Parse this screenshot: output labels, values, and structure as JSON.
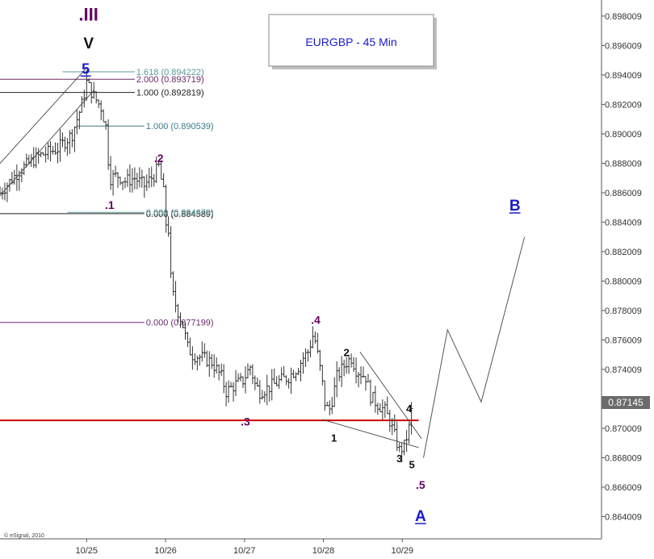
{
  "chart_data": {
    "type": "ohlc",
    "title": "EURGBP - 45 Min",
    "copyright": "© eSignal, 2010",
    "current_price": "0.87145",
    "y_ticks": [
      "0.898009",
      "0.896009",
      "0.894009",
      "0.892009",
      "0.890009",
      "0.888009",
      "0.886009",
      "0.884009",
      "0.882009",
      "0.880009",
      "0.878009",
      "0.876009",
      "0.874009",
      "0.872009",
      "0.870009",
      "0.868009",
      "0.866009",
      "0.864009"
    ],
    "x_ticks": [
      {
        "label": "10/25",
        "x": 0.3
      },
      {
        "label": "10/26",
        "x": 1.12
      },
      {
        "label": "10/27",
        "x": 1.94
      },
      {
        "label": "10/28",
        "x": 2.76
      },
      {
        "label": "10/29",
        "x": 3.58
      }
    ],
    "x_range": [
      -0.6,
      5.65
    ],
    "y_range": [
      0.8625,
      0.8991
    ],
    "support_level": 0.87055,
    "price_path": [
      [
        -0.6,
        0.886
      ],
      [
        -0.4,
        0.8875
      ],
      [
        -0.2,
        0.8885
      ],
      [
        0.0,
        0.889
      ],
      [
        0.15,
        0.89
      ],
      [
        0.25,
        0.892
      ],
      [
        0.3,
        0.8935
      ],
      [
        0.38,
        0.8925
      ],
      [
        0.45,
        0.8918
      ],
      [
        0.5,
        0.8905
      ],
      [
        0.52,
        0.8885
      ],
      [
        0.55,
        0.887
      ],
      [
        0.62,
        0.8872
      ],
      [
        0.7,
        0.8868
      ],
      [
        0.8,
        0.887
      ],
      [
        0.9,
        0.8865
      ],
      [
        1.0,
        0.8872
      ],
      [
        1.05,
        0.8878
      ],
      [
        1.1,
        0.886
      ],
      [
        1.12,
        0.884
      ],
      [
        1.15,
        0.8835
      ],
      [
        1.18,
        0.8795
      ],
      [
        1.22,
        0.8785
      ],
      [
        1.3,
        0.877
      ],
      [
        1.35,
        0.8755
      ],
      [
        1.4,
        0.875
      ],
      [
        1.5,
        0.8748
      ],
      [
        1.6,
        0.8745
      ],
      [
        1.7,
        0.8735
      ],
      [
        1.75,
        0.8725
      ],
      [
        1.85,
        0.873
      ],
      [
        1.92,
        0.8732
      ],
      [
        2.0,
        0.8742
      ],
      [
        2.05,
        0.873
      ],
      [
        2.1,
        0.8725
      ],
      [
        2.2,
        0.8728
      ],
      [
        2.3,
        0.8732
      ],
      [
        2.4,
        0.8735
      ],
      [
        2.5,
        0.8742
      ],
      [
        2.55,
        0.8748
      ],
      [
        2.6,
        0.8752
      ],
      [
        2.66,
        0.8765
      ],
      [
        2.7,
        0.875
      ],
      [
        2.74,
        0.8735
      ],
      [
        2.78,
        0.8715
      ],
      [
        2.82,
        0.8712
      ],
      [
        2.86,
        0.8722
      ],
      [
        2.9,
        0.8735
      ],
      [
        3.0,
        0.8745
      ],
      [
        3.05,
        0.8748
      ],
      [
        3.1,
        0.874
      ],
      [
        3.2,
        0.8735
      ],
      [
        3.25,
        0.8722
      ],
      [
        3.3,
        0.8718
      ],
      [
        3.4,
        0.8712
      ],
      [
        3.45,
        0.8705
      ],
      [
        3.5,
        0.8695
      ],
      [
        3.55,
        0.8685
      ],
      [
        3.6,
        0.8688
      ],
      [
        3.65,
        0.87
      ],
      [
        3.68,
        0.8714
      ]
    ],
    "channel_lines": [
      [
        [
          -0.6,
          0.8858
        ],
        [
          0.38,
          0.893
        ]
      ],
      [
        [
          -0.6,
          0.888
        ],
        [
          0.3,
          0.8945
        ]
      ],
      [
        [
          2.75,
          0.8706
        ],
        [
          3.75,
          0.8687
        ]
      ],
      [
        [
          3.14,
          0.8752
        ],
        [
          3.78,
          0.8693
        ]
      ]
    ],
    "projection": [
      [
        3.8,
        0.868
      ],
      [
        4.05,
        0.8767
      ],
      [
        4.4,
        0.8718
      ],
      [
        4.85,
        0.883
      ]
    ],
    "fib_levels": [
      {
        "label": "1.618 (0.894222)",
        "value": 0.894222,
        "x1": 0.05,
        "x2": 0.8,
        "color": "#5a9a9a"
      },
      {
        "label": "2.000 (0.893719)",
        "value": 0.893719,
        "x1": -0.6,
        "x2": 0.8,
        "color": "#6a2a6a"
      },
      {
        "label": "1.000 (0.892819)",
        "value": 0.892819,
        "x1": -0.6,
        "x2": 0.8,
        "color": "#222222"
      },
      {
        "label": "1.000 (0.890539)",
        "value": 0.890539,
        "x1": 0.2,
        "x2": 0.9,
        "color": "#3a7a8a"
      },
      {
        "label": "0.000 (0.884589)",
        "value": 0.884589,
        "x1": -0.6,
        "x2": 0.9,
        "color": "#222222"
      },
      {
        "label": "0.000 (0.884679)",
        "value": 0.884679,
        "x1": 0.1,
        "x2": 0.9,
        "color": "#5a9a9a"
      },
      {
        "label": "0.000 (0.877199)",
        "value": 0.877199,
        "x1": -0.6,
        "x2": 0.9,
        "color": "#6a2a6a"
      }
    ],
    "wave_labels": [
      {
        "text": ".III",
        "x": 0.32,
        "y": 0.8977,
        "color": "#660066",
        "size": 22
      },
      {
        "text": "V",
        "x": 0.32,
        "y": 0.8958,
        "color": "#111111",
        "size": 19
      },
      {
        "text": "5",
        "x": 0.29,
        "y": 0.8941,
        "color": "#1a1acc",
        "size": 18,
        "underline": true
      },
      {
        "text": ".2",
        "x": 1.05,
        "y": 0.8881,
        "color": "#660066",
        "size": 14
      },
      {
        "text": ".1",
        "x": 0.54,
        "y": 0.8849,
        "color": "#660066",
        "size": 14
      },
      {
        "text": ".4",
        "x": 2.68,
        "y": 0.8771,
        "color": "#660066",
        "size": 14
      },
      {
        "text": "2",
        "x": 3.0,
        "y": 0.8749,
        "color": "#111111",
        "size": 13
      },
      {
        "text": "4",
        "x": 3.65,
        "y": 0.8711,
        "color": "#111111",
        "size": 13
      },
      {
        "text": ".3",
        "x": 1.95,
        "y": 0.8702,
        "color": "#660066",
        "size": 14
      },
      {
        "text": "1",
        "x": 2.87,
        "y": 0.8691,
        "color": "#111111",
        "size": 13
      },
      {
        "text": "3",
        "x": 3.55,
        "y": 0.8677,
        "color": "#111111",
        "size": 13
      },
      {
        "text": "5",
        "x": 3.68,
        "y": 0.8673,
        "color": "#111111",
        "size": 13
      },
      {
        "text": ".5",
        "x": 3.77,
        "y": 0.8659,
        "color": "#660066",
        "size": 14
      },
      {
        "text": "A",
        "x": 3.77,
        "y": 0.8637,
        "color": "#1a1acc",
        "size": 19,
        "underline": true
      },
      {
        "text": "B",
        "x": 4.75,
        "y": 0.8848,
        "color": "#1a1acc",
        "size": 19,
        "underline": true
      }
    ],
    "colors": {
      "bars": "#333333",
      "support": "#cc0000",
      "projection": "#555555",
      "channel": "#333333",
      "axis": "#555555",
      "price_badge": "#6b6b6b"
    }
  }
}
